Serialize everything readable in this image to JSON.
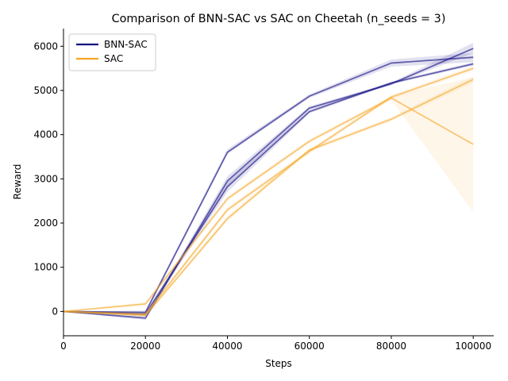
{
  "chart_data": {
    "type": "line",
    "title": "Comparison of BNN-SAC vs SAC on Cheetah (n_seeds = 3)",
    "xlabel": "Steps",
    "ylabel": "Reward",
    "xlim": [
      0,
      105000
    ],
    "ylim": [
      -550,
      6400
    ],
    "xticks": [
      0,
      20000,
      40000,
      60000,
      80000,
      100000
    ],
    "yticks": [
      0,
      1000,
      2000,
      3000,
      4000,
      5000,
      6000
    ],
    "grid": false,
    "legend_position": "upper-left",
    "x": [
      0,
      20000,
      40000,
      60000,
      80000,
      100000
    ],
    "series": [
      {
        "name": "BNN-SAC",
        "color": "#0d0680",
        "runs": [
          {
            "mean": [
              0,
              -20,
              3600,
              4870,
              5620,
              5750
            ],
            "lower": [
              0,
              -60,
              3560,
              4830,
              5540,
              5640
            ],
            "upper": [
              0,
              20,
              3670,
              4910,
              5700,
              5850
            ]
          },
          {
            "mean": [
              0,
              -150,
              2950,
              4600,
              5150,
              5950
            ],
            "lower": [
              0,
              -190,
              2840,
              4560,
              5120,
              5850
            ],
            "upper": [
              0,
              -110,
              3060,
              4640,
              5180,
              6080
            ]
          },
          {
            "mean": [
              0,
              -60,
              2820,
              4520,
              5170,
              5600
            ],
            "lower": [
              0,
              -100,
              2700,
              4480,
              5140,
              5560
            ],
            "upper": [
              0,
              -20,
              2920,
              4560,
              5200,
              5640
            ]
          }
        ]
      },
      {
        "name": "SAC",
        "color": "#f5a623",
        "runs": [
          {
            "mean": [
              0,
              170,
              2550,
              3850,
              4830,
              3780
            ],
            "lower": [
              0,
              130,
              2500,
              3800,
              4780,
              2250
            ],
            "upper": [
              0,
              210,
              2600,
              3900,
              4880,
              5300
            ]
          },
          {
            "mean": [
              0,
              -60,
              2300,
              3620,
              4850,
              5500
            ],
            "lower": [
              0,
              -100,
              2240,
              3570,
              4800,
              5440
            ],
            "upper": [
              0,
              -20,
              2360,
              3670,
              4900,
              5560
            ]
          },
          {
            "mean": [
              0,
              -90,
              2100,
              3650,
              4350,
              5250
            ],
            "lower": [
              0,
              -130,
              2040,
              3600,
              4300,
              5180
            ],
            "upper": [
              0,
              -50,
              2160,
              3700,
              4400,
              5320
            ]
          }
        ]
      }
    ]
  }
}
